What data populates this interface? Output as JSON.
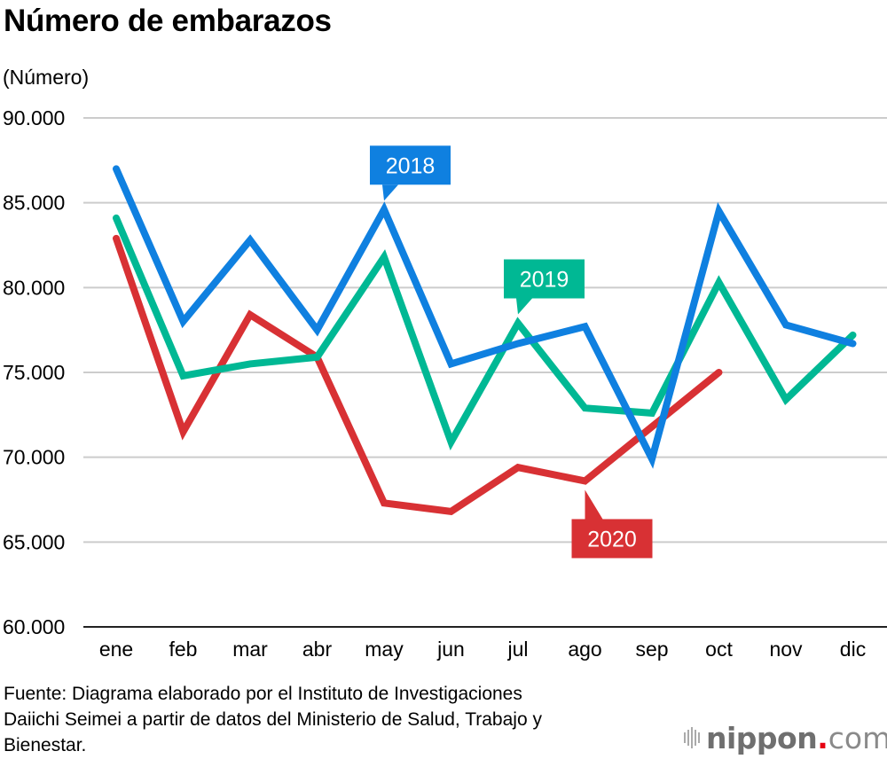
{
  "title": "Número de embarazos",
  "unit_label": "(Número)",
  "source": {
    "line1": "Fuente: Diagrama elaborado por el Instituto de Investigaciones",
    "line2": "Daiichi Seimei a partir de datos del Ministerio de Salud, Trabajo y",
    "line3": "Bienestar."
  },
  "logo": {
    "name": "nippon",
    "dot": ".",
    "tld": "com",
    "icon": "sound-bars-icon"
  },
  "colors": {
    "2018": "#0f80e0",
    "2019": "#00b894",
    "2020": "#d83134",
    "grid": "#cccccc"
  },
  "chart_data": {
    "type": "line",
    "title": "Número de embarazos",
    "xlabel": "",
    "ylabel": "(Número)",
    "ylim": [
      60000,
      90000
    ],
    "yticks": [
      60000,
      65000,
      70000,
      75000,
      80000,
      85000,
      90000
    ],
    "ytick_labels": [
      "60.000",
      "65.000",
      "70.000",
      "75.000",
      "80.000",
      "85.000",
      "90.000"
    ],
    "grid": true,
    "categories": [
      "ene",
      "feb",
      "mar",
      "abr",
      "may",
      "jun",
      "jul",
      "ago",
      "sep",
      "oct",
      "nov",
      "dic"
    ],
    "series": [
      {
        "name": "2018",
        "color": "#0f80e0",
        "values": [
          87000,
          78000,
          82800,
          77500,
          84600,
          75500,
          76700,
          77700,
          69900,
          84500,
          77800,
          76700
        ]
      },
      {
        "name": "2019",
        "color": "#00b894",
        "values": [
          84100,
          74800,
          75500,
          75900,
          81800,
          70900,
          77900,
          72900,
          72600,
          80300,
          73400,
          77200
        ]
      },
      {
        "name": "2020",
        "color": "#d83134",
        "values": [
          82900,
          71500,
          78400,
          75900,
          67300,
          66800,
          69400,
          68600,
          71800,
          75000,
          null,
          null
        ]
      }
    ],
    "annotations": [
      {
        "text": "2018",
        "series": "2018",
        "anchor_category": "may",
        "position": "above"
      },
      {
        "text": "2019",
        "series": "2019",
        "anchor_category": "jul",
        "position": "above"
      },
      {
        "text": "2020",
        "series": "2020",
        "anchor_category": "ago",
        "position": "below"
      }
    ],
    "legend": "inline-callouts"
  }
}
